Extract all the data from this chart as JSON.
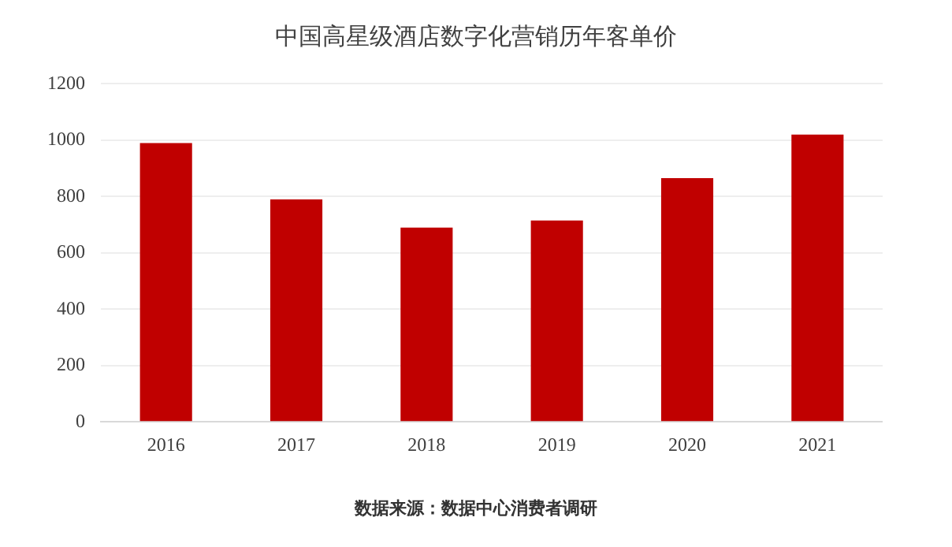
{
  "chart_data": {
    "type": "bar",
    "title": "中国高星级酒店数字化营销历年客单价",
    "categories": [
      "2016",
      "2017",
      "2018",
      "2019",
      "2020",
      "2021"
    ],
    "values": [
      990,
      790,
      690,
      715,
      865,
      1020
    ],
    "color": "#c00000",
    "ylim": [
      0,
      1200
    ],
    "yticks": [
      0,
      200,
      400,
      600,
      800,
      1000,
      1200
    ],
    "grid": "y",
    "annotations": [
      "数据来源：数据中心消费者调研"
    ]
  }
}
